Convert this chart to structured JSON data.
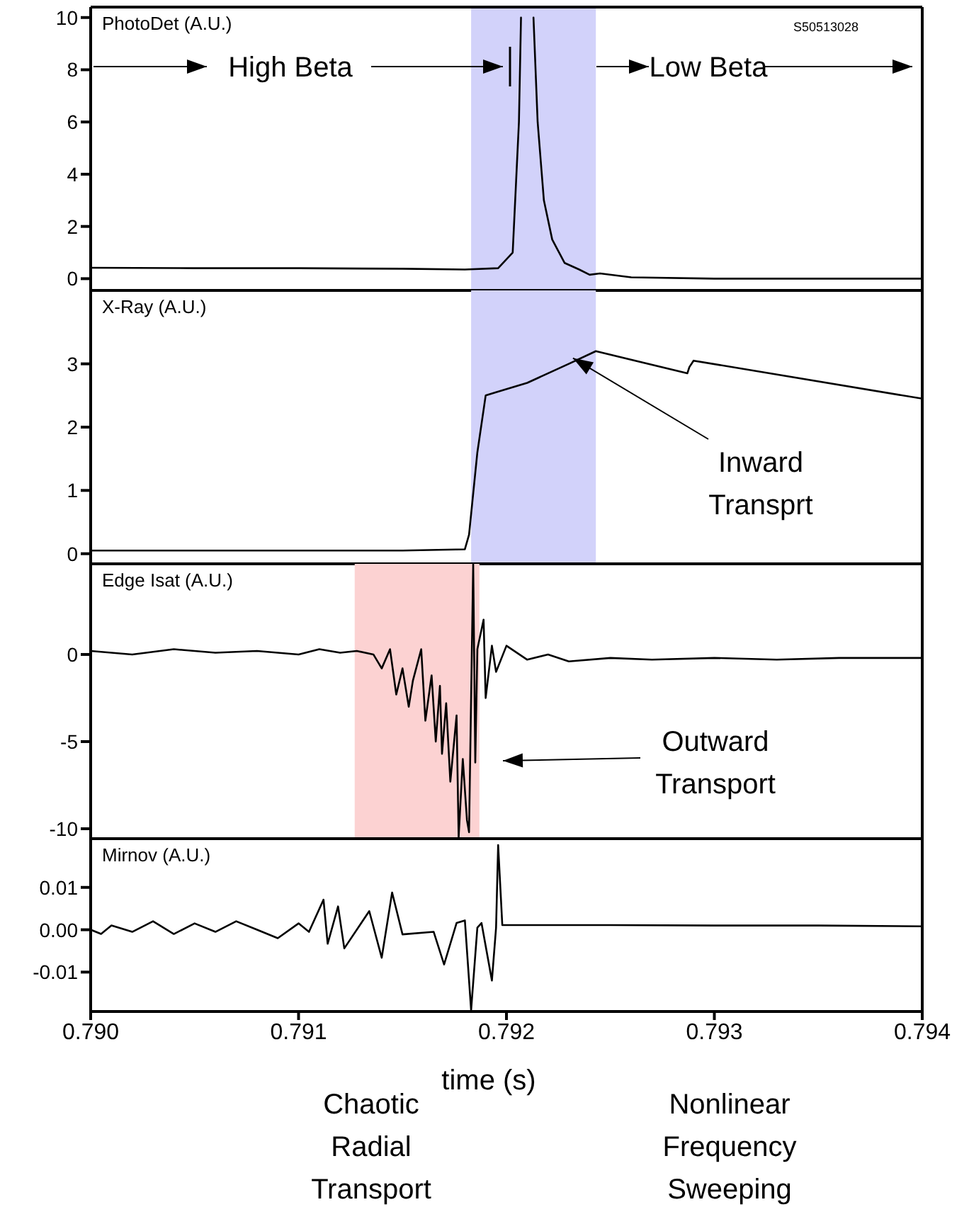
{
  "chart_data": [
    {
      "type": "line",
      "title": "PhotoDet (A.U.)",
      "tick_labels": "y",
      "xlim": [
        0.79,
        0.794
      ],
      "ylim": [
        -0.45,
        10.4
      ],
      "yticks": [
        0,
        2,
        4,
        6,
        8,
        10
      ],
      "marker": "none",
      "line_style": "solid",
      "bands": [
        {
          "axis": "x",
          "from": 0.79183,
          "to": 0.79243,
          "color": "#d2d2fa"
        }
      ],
      "annotations": [
        "S50513028",
        "High Beta",
        "Low Beta"
      ],
      "series": [
        {
          "color": "#000000",
          "x": [
            0.79,
            0.7905,
            0.791,
            0.7915,
            0.7918,
            0.79196,
            0.79203,
            0.79206,
            0.79207,
            0.79208,
            0.79212,
            0.79213,
            0.79215,
            0.79218,
            0.79222,
            0.79228,
            0.79235,
            0.7924,
            0.79245,
            0.7926,
            0.793,
            0.794
          ],
          "values": [
            0.42,
            0.4,
            0.4,
            0.38,
            0.35,
            0.4,
            1.0,
            6,
            10,
            null,
            null,
            10,
            6,
            3,
            1.5,
            0.6,
            0.35,
            0.15,
            0.2,
            0.05,
            0.0,
            0.0
          ]
        }
      ]
    },
    {
      "type": "line",
      "title": "X-Ray (A.U.)",
      "tick_labels": "y",
      "xlim": [
        0.79,
        0.794
      ],
      "ylim": [
        -0.16,
        4.16
      ],
      "yticks": [
        0,
        1,
        2,
        3
      ],
      "marker": "none",
      "line_style": "solid",
      "bands": [
        {
          "axis": "x",
          "from": 0.79183,
          "to": 0.79243,
          "color": "#d2d2fa"
        }
      ],
      "annotations": [
        {
          "text": "Inward Transprt",
          "x": 0.79232,
          "y": 3.09
        }
      ],
      "series": [
        {
          "color": "#000000",
          "x": [
            0.79,
            0.7905,
            0.791,
            0.7915,
            0.7918,
            0.79182,
            0.79186,
            0.7919,
            0.79195,
            0.7921,
            0.7923,
            0.79243,
            0.79287,
            0.79288,
            0.7929,
            0.794
          ],
          "values": [
            0.05,
            0.05,
            0.05,
            0.05,
            0.07,
            0.3,
            1.6,
            2.5,
            2.55,
            2.7,
            3.0,
            3.2,
            2.85,
            2.95,
            3.05,
            2.45
          ]
        }
      ]
    },
    {
      "type": "line",
      "title": "Edge Isat (A.U.)",
      "tick_labels": "y",
      "xlim": [
        0.79,
        0.794
      ],
      "ylim": [
        -10.57,
        5.2
      ],
      "yticks": [
        0,
        -5,
        -10
      ],
      "marker": "none",
      "line_style": "solid",
      "bands": [
        {
          "axis": "x",
          "from": 0.79127,
          "to": 0.79187,
          "color": "#fcd2d2"
        }
      ],
      "annotations": [
        "Outward Transport"
      ],
      "series": [
        {
          "color": "#000000",
          "x": [
            0.79,
            0.7902,
            0.7904,
            0.7906,
            0.7908,
            0.791,
            0.7911,
            0.7912,
            0.79128,
            0.79136,
            0.7914,
            0.79144,
            0.79147,
            0.7915,
            0.79153,
            0.79155,
            0.79159,
            0.79161,
            0.79164,
            0.79166,
            0.79168,
            0.79169,
            0.79171,
            0.79173,
            0.79176,
            0.79177,
            0.79179,
            0.79181,
            0.79182,
            0.79184,
            0.79185,
            0.79186,
            0.79189,
            0.7919,
            0.79193,
            0.79195,
            0.792,
            0.7921,
            0.7922,
            0.7923,
            0.7925,
            0.7927,
            0.793,
            0.7933,
            0.7936,
            0.794
          ],
          "values": [
            0.2,
            0.0,
            0.3,
            0.1,
            0.2,
            0.0,
            0.3,
            0.1,
            0.2,
            0.0,
            -0.8,
            0.3,
            -2.3,
            -0.8,
            -3.0,
            -1.5,
            0.3,
            -3.8,
            -1.2,
            -5.0,
            -1.8,
            -5.7,
            -2.8,
            -7.3,
            -3.5,
            -10.5,
            -6,
            -9.5,
            -10.2,
            5.2,
            -6.2,
            0.3,
            2.0,
            -2.5,
            0.5,
            -1,
            0.5,
            -0.3,
            0.0,
            -0.4,
            -0.2,
            -0.3,
            -0.2,
            -0.3,
            -0.2,
            -0.2
          ]
        }
      ]
    },
    {
      "type": "line",
      "title": "Mirnov (A.U.)",
      "xlabel": "time (s)",
      "xlim": [
        0.79,
        0.794
      ],
      "xticks": [
        {
          "value": 0.79,
          "label": "0.790"
        },
        {
          "value": 0.791,
          "label": "0.791"
        },
        {
          "value": 0.792,
          "label": "0.792"
        },
        {
          "value": 0.793,
          "label": "0.793"
        },
        {
          "value": 0.794,
          "label": "0.794"
        }
      ],
      "ylim": [
        -0.0193,
        0.0215
      ],
      "yticks": [
        0.01,
        {
          "value": 0,
          "label": "0.00"
        },
        -0.01
      ],
      "marker": "none",
      "line_style": "solid",
      "annotations": [
        "Chaotic Radial Transport",
        "Nonlinear Frequency Sweeping"
      ],
      "series": [
        {
          "color": "#000000",
          "x": [
            0.79,
            0.79005,
            0.7901,
            0.7902,
            0.7903,
            0.7904,
            0.7905,
            0.7906,
            0.7907,
            0.7908,
            0.7909,
            0.791,
            0.79105,
            0.79112,
            0.79114,
            0.79119,
            0.79122,
            0.79134,
            0.7914,
            0.79145,
            0.7915,
            0.79165,
            0.7917,
            0.79176,
            0.7918,
            0.79183,
            0.79186,
            0.79188,
            0.79193,
            0.79195,
            0.79196,
            0.79198,
            0.7925,
            0.793,
            0.7935,
            0.794
          ],
          "values": [
            0.0,
            -0.001,
            0.001,
            -0.0005,
            0.002,
            -0.001,
            0.0015,
            -0.0005,
            0.002,
            0.0,
            -0.002,
            0.0015,
            -0.0005,
            0.0071,
            -0.0033,
            0.0055,
            -0.0044,
            0.0044,
            -0.0066,
            0.0088,
            -0.0011,
            -0.0005,
            -0.0082,
            0.0016,
            0.0022,
            -0.019,
            0.0005,
            0.0016,
            -0.012,
            0.0005,
            0.02,
            0.0011,
            0.0011,
            0.001,
            0.001,
            0.0008
          ]
        }
      ]
    }
  ]
}
